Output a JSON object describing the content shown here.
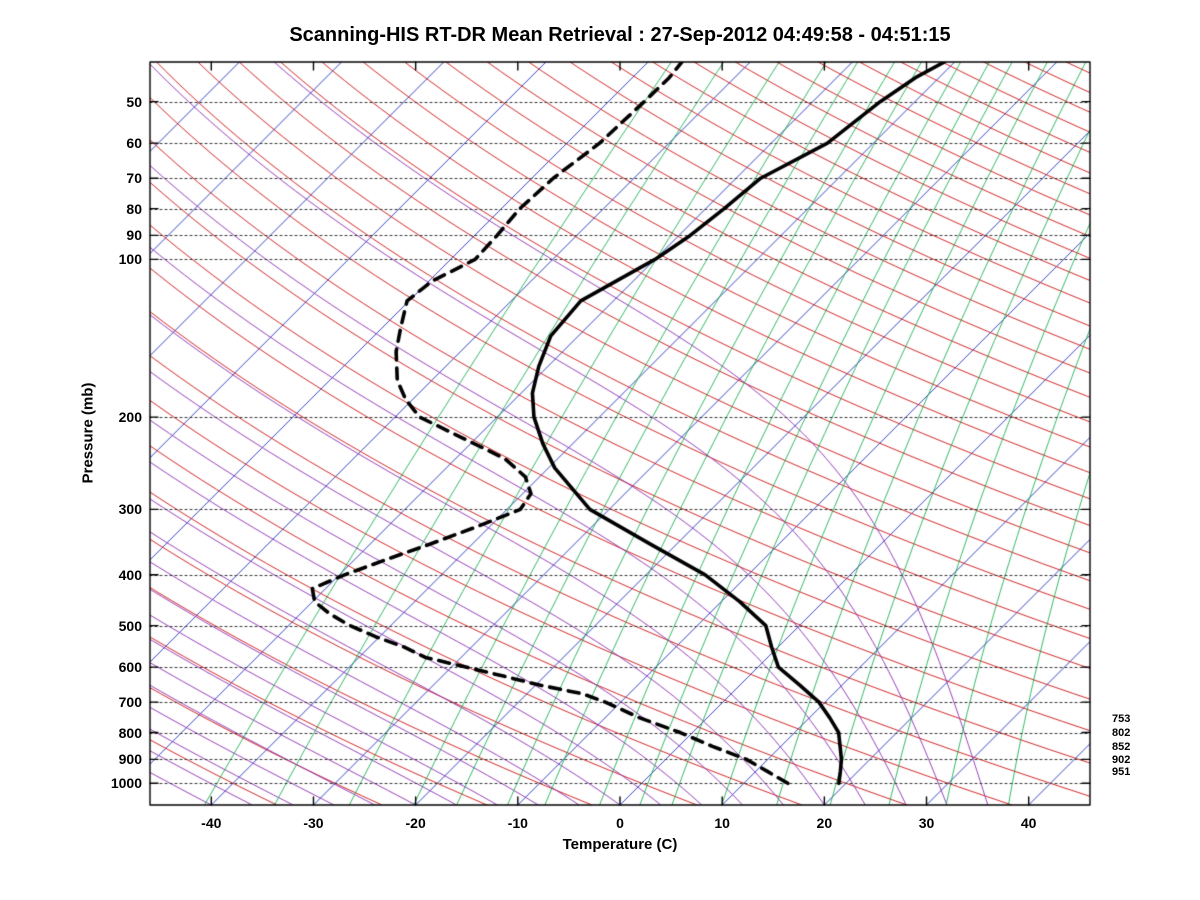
{
  "title": "Scanning-HIS RT-DR Mean Retrieval : 27-Sep-2012 04:49:58 - 04:51:15",
  "chart_data": {
    "type": "line",
    "chart_variant": "skew-t-log-p sounding",
    "title": "Scanning-HIS RT-DR Mean Retrieval : 27-Sep-2012 04:49:58 - 04:51:15",
    "xlabel": "Temperature (C)",
    "ylabel": "Pressure (mb)",
    "x_tick_labels": [
      -40,
      -30,
      -20,
      -10,
      0,
      10,
      20,
      30,
      40
    ],
    "y_tick_labels": [
      50,
      60,
      70,
      80,
      90,
      100,
      200,
      300,
      400,
      500,
      600,
      700,
      800,
      900,
      1000
    ],
    "x_axis_range_c": [
      -46,
      46
    ],
    "pressure_range_mb": [
      42,
      1100
    ],
    "skew_c_per_decade": 51.3,
    "grid": "horizontal dotted black lines at pressure ticks",
    "legend_position": "none",
    "series": [
      {
        "name": "temperature_c",
        "line": "solid",
        "color": "#000000",
        "points_p_t": [
          [
            1000,
            19.3
          ],
          [
            950,
            18.3
          ],
          [
            900,
            17.2
          ],
          [
            850,
            15.8
          ],
          [
            800,
            14.3
          ],
          [
            750,
            12.0
          ],
          [
            700,
            9.4
          ],
          [
            650,
            5.9
          ],
          [
            600,
            2.0
          ],
          [
            550,
            -0.6
          ],
          [
            500,
            -3.3
          ],
          [
            450,
            -8.2
          ],
          [
            400,
            -14.2
          ],
          [
            350,
            -22.5
          ],
          [
            300,
            -31.9
          ],
          [
            250,
            -39.4
          ],
          [
            225,
            -42.9
          ],
          [
            200,
            -46.4
          ],
          [
            180,
            -48.9
          ],
          [
            160,
            -50.9
          ],
          [
            140,
            -52.7
          ],
          [
            120,
            -53.2
          ],
          [
            100,
            -50.0
          ],
          [
            90,
            -48.9
          ],
          [
            80,
            -48.2
          ],
          [
            70,
            -47.6
          ],
          [
            60,
            -44.5
          ],
          [
            50,
            -43.4
          ],
          [
            45,
            -42.3
          ],
          [
            42,
            -41.0
          ]
        ]
      },
      {
        "name": "dewpoint_c",
        "line": "dashed",
        "color": "#000000",
        "points_p_t": [
          [
            1000,
            14.3
          ],
          [
            950,
            11.2
          ],
          [
            900,
            7.9
          ],
          [
            850,
            3.3
          ],
          [
            800,
            -1.2
          ],
          [
            750,
            -6.6
          ],
          [
            700,
            -11.5
          ],
          [
            675,
            -14.5
          ],
          [
            650,
            -19.5
          ],
          [
            625,
            -23.9
          ],
          [
            600,
            -28.6
          ],
          [
            575,
            -33.5
          ],
          [
            550,
            -36.5
          ],
          [
            525,
            -40.4
          ],
          [
            500,
            -44.0
          ],
          [
            475,
            -47.1
          ],
          [
            450,
            -49.8
          ],
          [
            425,
            -51.3
          ],
          [
            400,
            -49.5
          ],
          [
            375,
            -47.0
          ],
          [
            350,
            -44.2
          ],
          [
            325,
            -41.4
          ],
          [
            300,
            -38.7
          ],
          [
            280,
            -39.2
          ],
          [
            260,
            -41.4
          ],
          [
            240,
            -45.2
          ],
          [
            220,
            -51.1
          ],
          [
            200,
            -57.6
          ],
          [
            185,
            -60.7
          ],
          [
            170,
            -63.4
          ],
          [
            150,
            -66.3
          ],
          [
            135,
            -68.2
          ],
          [
            120,
            -70.2
          ],
          [
            110,
            -69.7
          ],
          [
            100,
            -67.6
          ],
          [
            90,
            -67.8
          ],
          [
            80,
            -68.2
          ],
          [
            70,
            -67.9
          ],
          [
            60,
            -66.8
          ],
          [
            50,
            -66.5
          ],
          [
            45,
            -66.4
          ],
          [
            42,
            -66.7
          ]
        ]
      }
    ],
    "background_line_families": [
      {
        "name": "isotherms",
        "color": "#2233bb",
        "t_from": -120,
        "t_to": 40,
        "step_c": 10
      },
      {
        "name": "dry_adiabats",
        "color": "#cc1111",
        "theta_from_c": -40,
        "theta_to_c": 340,
        "step_c": 10
      },
      {
        "name": "moist_adiabats",
        "color": "#8a2bb0",
        "t0_from_c": -40,
        "t0_to_c": 36,
        "step_c": 4
      },
      {
        "name": "mixing_ratio_lines",
        "color": "#00a63e",
        "values_g_kg": [
          0.1,
          0.2,
          0.4,
          0.7,
          1,
          1.5,
          2,
          3,
          4,
          5,
          7,
          10,
          14,
          20,
          28,
          40
        ]
      }
    ],
    "right_margin_pressure_labels": [
      753,
      802,
      852,
      902,
      951
    ]
  }
}
